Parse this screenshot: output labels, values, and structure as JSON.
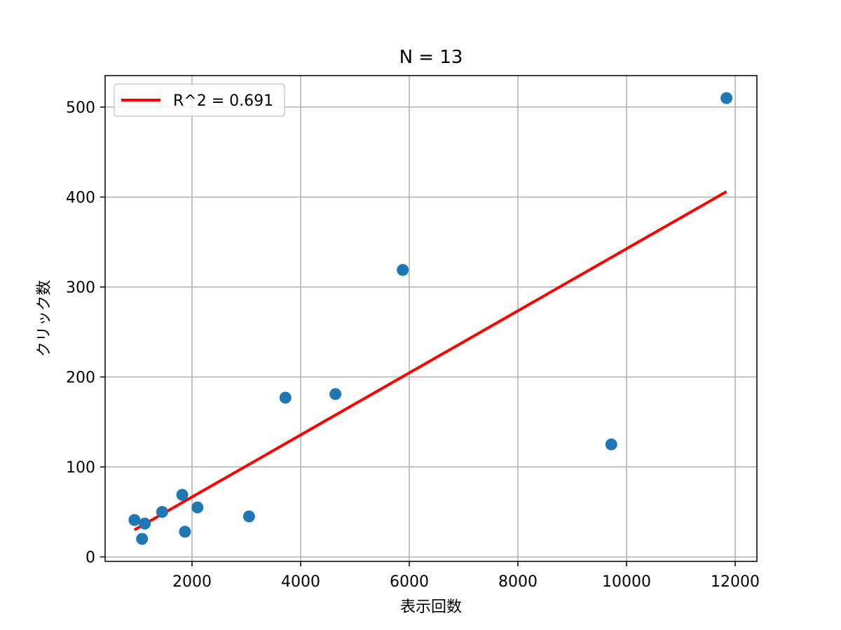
{
  "chart_data": {
    "type": "scatter",
    "title": "N = 13",
    "xlabel": "表示回数",
    "ylabel": "クリック数",
    "xlim": [
      400,
      12400
    ],
    "ylim": [
      -5,
      535
    ],
    "x_ticks": [
      2000,
      4000,
      6000,
      8000,
      10000,
      12000
    ],
    "y_ticks": [
      0,
      100,
      200,
      300,
      400,
      500
    ],
    "grid": true,
    "legend_position": "top-left",
    "series": [
      {
        "kind": "scatter",
        "color": "#1f77b4",
        "points": [
          {
            "x": 940,
            "y": 41
          },
          {
            "x": 1130,
            "y": 37
          },
          {
            "x": 1080,
            "y": 20
          },
          {
            "x": 1450,
            "y": 50
          },
          {
            "x": 1820,
            "y": 69
          },
          {
            "x": 1870,
            "y": 28
          },
          {
            "x": 2100,
            "y": 55
          },
          {
            "x": 3050,
            "y": 45
          },
          {
            "x": 3720,
            "y": 177
          },
          {
            "x": 4640,
            "y": 181
          },
          {
            "x": 5880,
            "y": 319
          },
          {
            "x": 9720,
            "y": 125
          },
          {
            "x": 11840,
            "y": 510
          }
        ]
      },
      {
        "kind": "line",
        "name": "R^2 = 0.691",
        "color": "#ff0000",
        "points": [
          {
            "x": 940,
            "y": 30
          },
          {
            "x": 11840,
            "y": 406
          }
        ]
      }
    ]
  }
}
